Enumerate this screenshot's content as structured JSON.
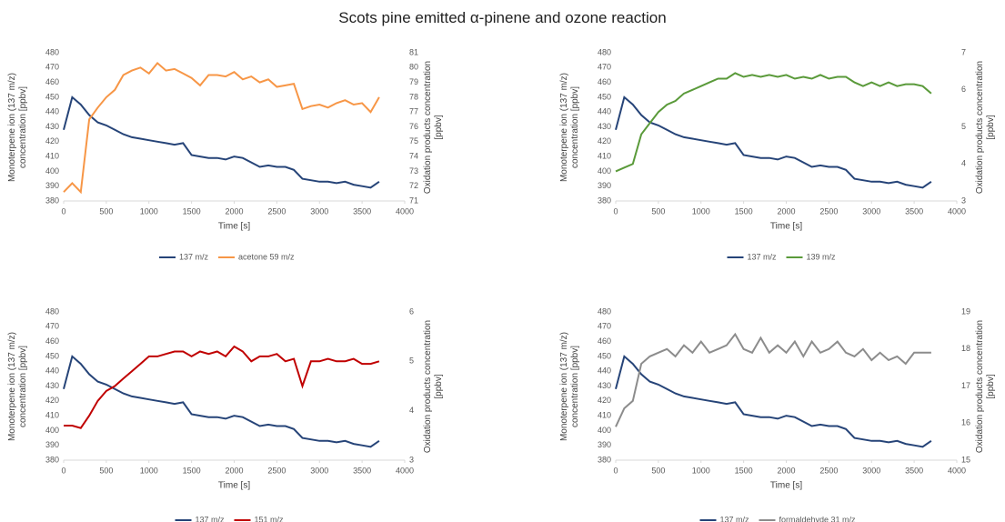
{
  "title": "Scots pine emitted α-pinene and ozone reaction",
  "chart_data": [
    {
      "type": "line",
      "xlabel": "Time [s]",
      "ylabel": "Monoterpene ion (137 m/z) concentration [ppbv]",
      "y2label": "Oxidation products concentration [ppbv]",
      "legend": "bottom",
      "grid": false,
      "x": [
        0,
        100,
        200,
        300,
        400,
        500,
        600,
        700,
        800,
        900,
        1000,
        1100,
        1200,
        1300,
        1400,
        1500,
        1600,
        1700,
        1800,
        1900,
        2000,
        2100,
        2200,
        2300,
        2400,
        2500,
        2600,
        2700,
        2800,
        2900,
        3000,
        3100,
        3200,
        3300,
        3400,
        3500,
        3600,
        3700
      ],
      "xlim": [
        0,
        4000
      ],
      "xticks": [
        0,
        500,
        1000,
        1500,
        2000,
        2500,
        3000,
        3500,
        4000
      ],
      "ylim": [
        380,
        480
      ],
      "yticks": [
        380,
        390,
        400,
        410,
        420,
        430,
        440,
        450,
        460,
        470,
        480
      ],
      "y2lim": [
        71,
        81
      ],
      "y2ticks": [
        71,
        72,
        73,
        74,
        75,
        76,
        77,
        78,
        79,
        80,
        81
      ],
      "series": [
        {
          "name": "137 m/z",
          "color": "#264478",
          "values": [
            428,
            450,
            445,
            438,
            433,
            431,
            428,
            425,
            423,
            422,
            421,
            420,
            419,
            418,
            419,
            411,
            410,
            409,
            409,
            408,
            410,
            409,
            406,
            403,
            404,
            403,
            403,
            401,
            395,
            394,
            393,
            393,
            392,
            393,
            391,
            390,
            389,
            393
          ]
        },
        {
          "name": "acetone 59 m/z",
          "color": "#f79646",
          "axis": "y2",
          "values": [
            71.6,
            72.2,
            71.6,
            76.5,
            77.3,
            78.0,
            78.5,
            79.5,
            79.8,
            80.0,
            79.6,
            80.3,
            79.8,
            79.9,
            79.6,
            79.3,
            78.8,
            79.5,
            79.5,
            79.4,
            79.7,
            79.2,
            79.4,
            79.0,
            79.2,
            78.7,
            78.8,
            78.9,
            77.2,
            77.4,
            77.5,
            77.3,
            77.6,
            77.8,
            77.5,
            77.6,
            77.0,
            78.0
          ]
        }
      ]
    },
    {
      "type": "line",
      "xlabel": "Time [s]",
      "ylabel": "Monoterpene ion (137 m/z) concentration [ppbv]",
      "y2label": "Oxidation products concentration [ppbv]",
      "legend": "bottom",
      "grid": false,
      "x": [
        0,
        100,
        200,
        300,
        400,
        500,
        600,
        700,
        800,
        900,
        1000,
        1100,
        1200,
        1300,
        1400,
        1500,
        1600,
        1700,
        1800,
        1900,
        2000,
        2100,
        2200,
        2300,
        2400,
        2500,
        2600,
        2700,
        2800,
        2900,
        3000,
        3100,
        3200,
        3300,
        3400,
        3500,
        3600,
        3700
      ],
      "xlim": [
        0,
        4000
      ],
      "xticks": [
        0,
        500,
        1000,
        1500,
        2000,
        2500,
        3000,
        3500,
        4000
      ],
      "ylim": [
        380,
        480
      ],
      "yticks": [
        380,
        390,
        400,
        410,
        420,
        430,
        440,
        450,
        460,
        470,
        480
      ],
      "y2lim": [
        3,
        7
      ],
      "y2ticks": [
        3,
        4,
        5,
        6,
        7
      ],
      "series": [
        {
          "name": "137 m/z",
          "color": "#264478",
          "values": [
            428,
            450,
            445,
            438,
            433,
            431,
            428,
            425,
            423,
            422,
            421,
            420,
            419,
            418,
            419,
            411,
            410,
            409,
            409,
            408,
            410,
            409,
            406,
            403,
            404,
            403,
            403,
            401,
            395,
            394,
            393,
            393,
            392,
            393,
            391,
            390,
            389,
            393
          ]
        },
        {
          "name": "139 m/z",
          "color": "#5a9a3a",
          "axis": "y2",
          "values": [
            3.8,
            3.9,
            4.0,
            4.8,
            5.1,
            5.4,
            5.6,
            5.7,
            5.9,
            6.0,
            6.1,
            6.2,
            6.3,
            6.3,
            6.45,
            6.35,
            6.4,
            6.35,
            6.4,
            6.35,
            6.4,
            6.3,
            6.35,
            6.3,
            6.4,
            6.3,
            6.35,
            6.35,
            6.2,
            6.1,
            6.2,
            6.1,
            6.2,
            6.1,
            6.15,
            6.15,
            6.1,
            5.9
          ]
        }
      ]
    },
    {
      "type": "line",
      "xlabel": "Time [s]",
      "ylabel": "Monoterpene ion (137 m/z) concentration [ppbv]",
      "y2label": "Oxidation products concentration [ppbv]",
      "legend": "bottom",
      "grid": false,
      "x": [
        0,
        100,
        200,
        300,
        400,
        500,
        600,
        700,
        800,
        900,
        1000,
        1100,
        1200,
        1300,
        1400,
        1500,
        1600,
        1700,
        1800,
        1900,
        2000,
        2100,
        2200,
        2300,
        2400,
        2500,
        2600,
        2700,
        2800,
        2900,
        3000,
        3100,
        3200,
        3300,
        3400,
        3500,
        3600,
        3700
      ],
      "xlim": [
        0,
        4000
      ],
      "xticks": [
        0,
        500,
        1000,
        1500,
        2000,
        2500,
        3000,
        3500,
        4000
      ],
      "ylim": [
        380,
        480
      ],
      "yticks": [
        380,
        390,
        400,
        410,
        420,
        430,
        440,
        450,
        460,
        470,
        480
      ],
      "y2lim": [
        3,
        6
      ],
      "y2ticks": [
        3,
        4,
        5,
        6
      ],
      "series": [
        {
          "name": "137 m/z",
          "color": "#264478",
          "values": [
            428,
            450,
            445,
            438,
            433,
            431,
            428,
            425,
            423,
            422,
            421,
            420,
            419,
            418,
            419,
            411,
            410,
            409,
            409,
            408,
            410,
            409,
            406,
            403,
            404,
            403,
            403,
            401,
            395,
            394,
            393,
            393,
            392,
            393,
            391,
            390,
            389,
            393
          ]
        },
        {
          "name": "151 m/z",
          "color": "#c00000",
          "axis": "y2",
          "values": [
            3.7,
            3.7,
            3.65,
            3.9,
            4.2,
            4.4,
            4.5,
            4.65,
            4.8,
            4.95,
            5.1,
            5.1,
            5.15,
            5.2,
            5.2,
            5.1,
            5.2,
            5.15,
            5.2,
            5.1,
            5.3,
            5.2,
            5.0,
            5.1,
            5.1,
            5.15,
            5.0,
            5.05,
            4.5,
            5.0,
            5.0,
            5.05,
            5.0,
            5.0,
            5.05,
            4.95,
            4.95,
            5.0
          ]
        }
      ]
    },
    {
      "type": "line",
      "xlabel": "Time [s]",
      "ylabel": "Monoterpene ion (137 m/z) concentration [ppbv]",
      "y2label": "Oxidation products concentration [ppbv]",
      "legend": "bottom",
      "grid": false,
      "x": [
        0,
        100,
        200,
        300,
        400,
        500,
        600,
        700,
        800,
        900,
        1000,
        1100,
        1200,
        1300,
        1400,
        1500,
        1600,
        1700,
        1800,
        1900,
        2000,
        2100,
        2200,
        2300,
        2400,
        2500,
        2600,
        2700,
        2800,
        2900,
        3000,
        3100,
        3200,
        3300,
        3400,
        3500,
        3600,
        3700
      ],
      "xlim": [
        0,
        4000
      ],
      "xticks": [
        0,
        500,
        1000,
        1500,
        2000,
        2500,
        3000,
        3500,
        4000
      ],
      "ylim": [
        380,
        480
      ],
      "yticks": [
        380,
        390,
        400,
        410,
        420,
        430,
        440,
        450,
        460,
        470,
        480
      ],
      "y2lim": [
        15,
        19
      ],
      "y2ticks": [
        15,
        16,
        17,
        18,
        19
      ],
      "series": [
        {
          "name": "137 m/z",
          "color": "#264478",
          "values": [
            428,
            450,
            445,
            438,
            433,
            431,
            428,
            425,
            423,
            422,
            421,
            420,
            419,
            418,
            419,
            411,
            410,
            409,
            409,
            408,
            410,
            409,
            406,
            403,
            404,
            403,
            403,
            401,
            395,
            394,
            393,
            393,
            392,
            393,
            391,
            390,
            389,
            393
          ]
        },
        {
          "name": "formaldehyde 31 m/z",
          "color": "#8c8c8c",
          "axis": "y2",
          "values": [
            15.9,
            16.4,
            16.6,
            17.6,
            17.8,
            17.9,
            18.0,
            17.8,
            18.1,
            17.9,
            18.2,
            17.9,
            18.0,
            18.1,
            18.4,
            18.0,
            17.9,
            18.3,
            17.9,
            18.1,
            17.9,
            18.2,
            17.8,
            18.2,
            17.9,
            18.0,
            18.2,
            17.9,
            17.8,
            18.0,
            17.7,
            17.9,
            17.7,
            17.8,
            17.6,
            17.9,
            17.9,
            17.9
          ]
        }
      ]
    }
  ]
}
